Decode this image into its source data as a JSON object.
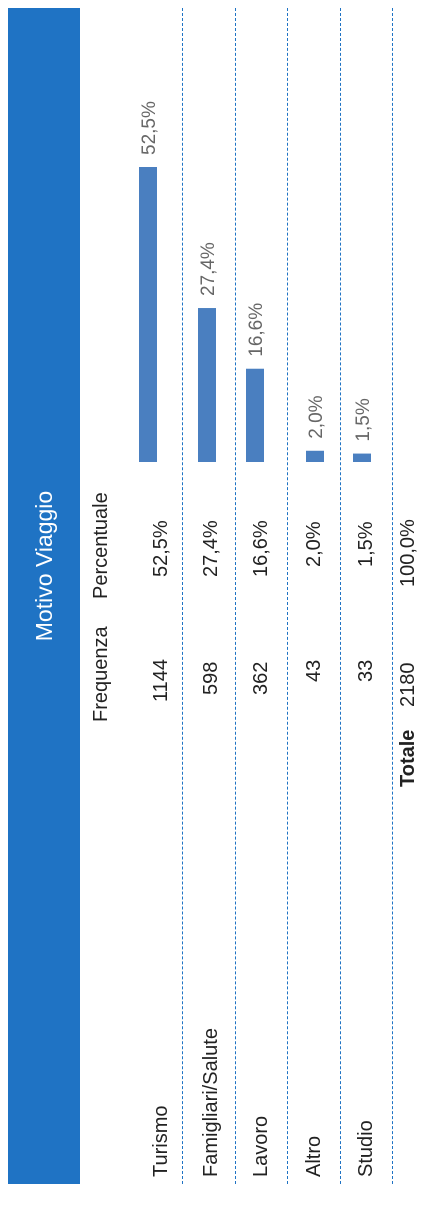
{
  "title": "Motivo Viaggio",
  "table": {
    "columns": [
      "",
      "Frequenza",
      "Percentuale"
    ],
    "rows": [
      {
        "category": "Turismo",
        "frequency": "1144",
        "percent": "52,5%"
      },
      {
        "category": "Famigliari/Salute",
        "frequency": "598",
        "percent": "27,4%"
      },
      {
        "category": "Lavoro",
        "frequency": "362",
        "percent": "16,6%"
      },
      {
        "category": "Altro",
        "frequency": "43",
        "percent": "2,0%"
      },
      {
        "category": "Studio",
        "frequency": "33",
        "percent": "1,5%"
      }
    ],
    "total": {
      "label": "Totale",
      "frequency": "2180",
      "percent": "100,0%"
    }
  },
  "colors": {
    "header": "#1f73c4",
    "bar": "#4a7fc0",
    "separator": "#1f73c4"
  },
  "chart_data": {
    "type": "bar",
    "categories": [
      "Turismo",
      "Famigliari/Salute",
      "Lavoro",
      "Altro",
      "Studio"
    ],
    "values": [
      52.5,
      27.4,
      16.6,
      2.0,
      1.5
    ],
    "labels": [
      "52,5%",
      "27,4%",
      "16,6%",
      "2,0%",
      "1,5%"
    ],
    "title": "Motivo Viaggio",
    "ylim": [
      0,
      60
    ]
  }
}
